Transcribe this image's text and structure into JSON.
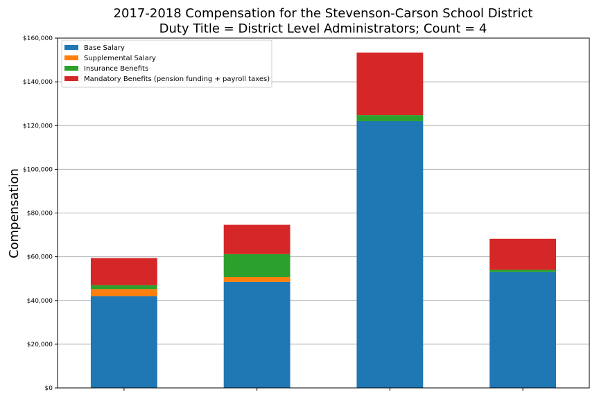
{
  "chart_data": {
    "type": "bar",
    "stacked": true,
    "title_line1": "2017-2018 Compensation for the Stevenson-Carson School District",
    "title_line2": "Duty Title = District Level Administrators; Count = 4",
    "xlabel": "",
    "ylabel": "Compensation",
    "ylim": [
      0,
      160000
    ],
    "yticks": [
      0,
      20000,
      40000,
      60000,
      80000,
      100000,
      120000,
      140000,
      160000
    ],
    "ytick_labels": [
      "$0",
      "$20,000",
      "$40,000",
      "$60,000",
      "$80,000",
      "$100,000",
      "$120,000",
      "$140,000",
      "$160,000"
    ],
    "categories": [
      "",
      "",
      "",
      ""
    ],
    "grid": "y",
    "legend_position": "top-left",
    "series": [
      {
        "name": "Base Salary",
        "color": "#1f77b4",
        "values": [
          42000,
          48500,
          122000,
          53000
        ]
      },
      {
        "name": "Supplemental Salary",
        "color": "#ff7f0e",
        "values": [
          3200,
          2200,
          0,
          0
        ]
      },
      {
        "name": "Insurance Benefits",
        "color": "#2ca02c",
        "values": [
          1800,
          10500,
          2800,
          1000
        ]
      },
      {
        "name": "Mandatory Benefits (pension funding + payroll taxes)",
        "color": "#d62728",
        "values": [
          12400,
          13400,
          28600,
          14200
        ]
      }
    ]
  }
}
